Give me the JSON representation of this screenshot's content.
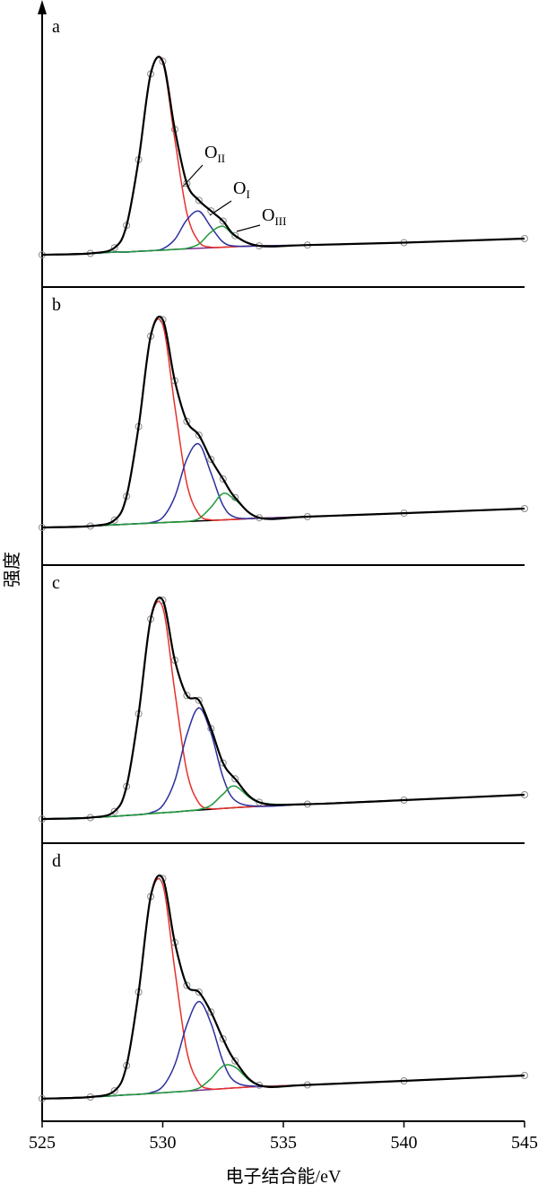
{
  "chart_data": [
    {
      "type": "line",
      "panel_label": "a",
      "y_label": "强度",
      "xlim": [
        525,
        545
      ],
      "ylim": [
        0,
        100
      ],
      "x": [
        525,
        527,
        528,
        528.5,
        529,
        529.5,
        530,
        530.5,
        531,
        531.5,
        532,
        532.5,
        533,
        534,
        536,
        540,
        545
      ],
      "series": [
        {
          "color": "#7b2d8e",
          "values": [
            12,
            12.5,
            13,
            13,
            13.3,
            13.5,
            13.7,
            14,
            14.2,
            14.4,
            14.6,
            14.8,
            15,
            15.3,
            15.6,
            16.5,
            18
          ]
        },
        {
          "color": "#e8302a",
          "values": [
            12,
            12.5,
            14.6,
            22.9,
            47.3,
            79.2,
            83.4,
            54.9,
            27.5,
            16.8,
            14.8,
            14.8,
            15,
            15.3,
            15.6,
            16.5,
            18
          ]
        },
        {
          "color": "#2b2f9e",
          "values": [
            12,
            12.5,
            13,
            13,
            13.3,
            13.5,
            14.2,
            17.7,
            25,
            28.2,
            22.3,
            16.7,
            15.2,
            15.3,
            15.6,
            16.5,
            18
          ]
        },
        {
          "color": "#1f9a3a",
          "values": [
            12,
            12.5,
            13,
            13,
            13.3,
            13.5,
            13.7,
            14,
            14.4,
            16,
            20.4,
            22.6,
            18.9,
            15.3,
            15.6,
            16.5,
            18
          ]
        },
        {
          "color": "#000000",
          "marker": "circle",
          "values": [
            12,
            12.5,
            14.6,
            22.9,
            47.3,
            79.2,
            83.9,
            58.6,
            38.5,
            32.2,
            28.3,
            24.5,
            19.1,
            15.3,
            15.6,
            16.5,
            18
          ]
        }
      ],
      "annotations": [
        {
          "text": "O",
          "sub": "II"
        },
        {
          "text": "O",
          "sub": "I"
        },
        {
          "text": "O",
          "sub": "III"
        }
      ]
    },
    {
      "type": "line",
      "panel_label": "b",
      "xlim": [
        525,
        545
      ],
      "ylim": [
        0,
        100
      ],
      "x": [
        525,
        527,
        528,
        528.5,
        529,
        529.5,
        530,
        530.5,
        531,
        531.5,
        532,
        532.5,
        533,
        534,
        536,
        540,
        545
      ],
      "series": [
        {
          "color": "#000000",
          "values": [
            14,
            14.5,
            15,
            15.2,
            15.4,
            15.6,
            15.8,
            16,
            16.2,
            16.4,
            16.6,
            16.8,
            17,
            17.4,
            18,
            19.3,
            21
          ]
        },
        {
          "color": "#e8302a",
          "values": [
            14,
            14.5,
            16.7,
            25.6,
            51.5,
            84.9,
            89.3,
            59.1,
            30.2,
            18.9,
            16.8,
            16.8,
            17,
            17.4,
            18,
            19.3,
            21
          ]
        },
        {
          "color": "#2b2f9e",
          "values": [
            14,
            14.5,
            15,
            15.2,
            15.4,
            15.8,
            17.7,
            25.4,
            39.4,
            45,
            34.2,
            22.2,
            17.8,
            17.4,
            18,
            19.3,
            21
          ]
        },
        {
          "color": "#1f9a3a",
          "values": [
            14,
            14.5,
            15,
            15.2,
            15.4,
            15.6,
            15.8,
            16,
            16.2,
            17.3,
            21.5,
            26.6,
            24.3,
            17.6,
            18,
            19.3,
            21
          ]
        },
        {
          "color": "#000000",
          "marker": "circle",
          "values": [
            14,
            14.5,
            16.7,
            25.6,
            51.5,
            85.1,
            91.2,
            68.5,
            53.4,
            48.3,
            39.3,
            32,
            25.1,
            17.6,
            18,
            19.3,
            21
          ]
        }
      ]
    },
    {
      "type": "line",
      "panel_label": "c",
      "xlim": [
        525,
        545
      ],
      "ylim": [
        0,
        100
      ],
      "x": [
        525,
        527,
        528,
        528.5,
        529,
        529.5,
        530,
        530.5,
        531,
        531.5,
        532,
        532.5,
        533,
        534,
        536,
        540,
        545
      ],
      "series": [
        {
          "color": "#000000",
          "values": [
            9,
            9.5,
            10,
            10.3,
            10.6,
            11,
            11.3,
            11.6,
            12,
            12.3,
            12.6,
            12.9,
            13.2,
            13.7,
            14.5,
            16,
            18
          ]
        },
        {
          "color": "#e8302a",
          "values": [
            9,
            9.5,
            11.8,
            21.1,
            48.1,
            83,
            87.6,
            56.4,
            26.6,
            14.9,
            12.8,
            12.9,
            13.2,
            13.7,
            14.5,
            16,
            18
          ]
        },
        {
          "color": "#2b2f9e",
          "values": [
            9,
            9.5,
            10,
            10.3,
            10.6,
            11.3,
            14,
            23.2,
            40.3,
            50.3,
            40.9,
            24.5,
            15.9,
            13.7,
            14.5,
            16,
            18
          ]
        },
        {
          "color": "#1f9a3a",
          "values": [
            9,
            9.5,
            10,
            10.3,
            10.6,
            11,
            11.3,
            11.6,
            12,
            12.5,
            14.1,
            18.2,
            21.2,
            15.2,
            14.5,
            16,
            18
          ]
        },
        {
          "color": "#000000",
          "marker": "circle",
          "values": [
            9,
            9.5,
            11.8,
            21.1,
            48.1,
            83.3,
            90.3,
            68,
            54.9,
            53.1,
            42.6,
            29.8,
            23.9,
            15.2,
            14.5,
            16,
            18
          ]
        }
      ]
    },
    {
      "type": "line",
      "panel_label": "d",
      "x_label": "电子结合能/eV",
      "xlim": [
        525,
        545
      ],
      "ylim": [
        0,
        100
      ],
      "xticks": [
        525,
        530,
        535,
        540,
        545
      ],
      "x": [
        525,
        527,
        528,
        528.5,
        529,
        529.5,
        530,
        530.5,
        531,
        531.5,
        532,
        532.5,
        533,
        534,
        536,
        540,
        545
      ],
      "series": [
        {
          "color": "#7b2d8e",
          "values": [
            8.4,
            9,
            9.5,
            9.8,
            10,
            10.3,
            10.6,
            10.9,
            11.2,
            11.5,
            11.8,
            12.1,
            12.4,
            12.9,
            13.5,
            15,
            17
          ]
        },
        {
          "color": "#e8302a",
          "values": [
            8.4,
            9,
            11.3,
            20.7,
            48,
            83.2,
            87.9,
            56.3,
            25.9,
            14.2,
            12,
            12.1,
            12.4,
            12.9,
            13.5,
            15,
            17
          ]
        },
        {
          "color": "#2b2f9e",
          "values": [
            8.4,
            9,
            9.5,
            9.8,
            10,
            10.6,
            12.9,
            21,
            35.8,
            44.5,
            36.4,
            22.2,
            14.7,
            12.9,
            13.5,
            15,
            17
          ]
        },
        {
          "color": "#1f9a3a",
          "values": [
            8.4,
            9,
            9.5,
            9.8,
            10,
            10.3,
            10.6,
            10.9,
            11.2,
            12.3,
            15.8,
            20.5,
            20.1,
            13.4,
            13.5,
            15,
            17
          ]
        },
        {
          "color": "#000000",
          "marker": "circle",
          "values": [
            8.4,
            9,
            11.3,
            20.7,
            48,
            83.5,
            90.2,
            66.4,
            50.5,
            48,
            40.6,
            30.6,
            22.4,
            13.4,
            13.5,
            15,
            17
          ]
        }
      ]
    }
  ]
}
